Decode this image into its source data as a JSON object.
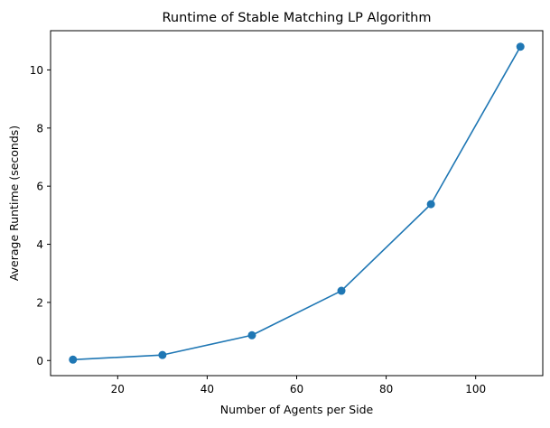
{
  "chart_data": {
    "type": "line",
    "title": "Runtime of Stable Matching LP Algorithm",
    "xlabel": "Number of Agents per Side",
    "ylabel": "Average Runtime (seconds)",
    "xlim": [
      5,
      115
    ],
    "ylim": [
      -0.52,
      11.35
    ],
    "xticks": [
      20,
      40,
      60,
      80,
      100
    ],
    "yticks": [
      0,
      2,
      4,
      6,
      8,
      10
    ],
    "grid": false,
    "series": [
      {
        "x": [
          10,
          30,
          50,
          70,
          90,
          110
        ],
        "values": [
          0.03,
          0.19,
          0.87,
          2.4,
          5.38,
          10.8
        ],
        "color": "#1f77b4",
        "marker": "circle"
      }
    ]
  }
}
